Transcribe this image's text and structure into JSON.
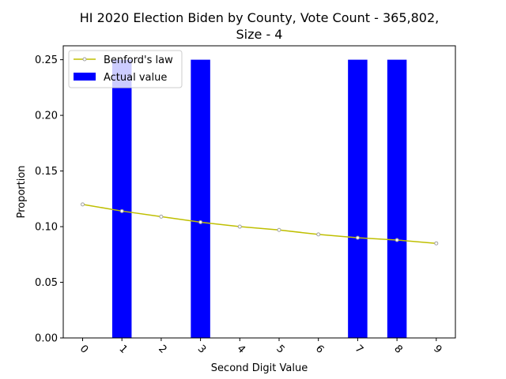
{
  "chart_data": {
    "type": "bar",
    "title_line1": "HI 2020 Election Biden by County,  Vote Count - 365,802,",
    "title_line2": "Size - 4",
    "xlabel": "Second Digit Value",
    "ylabel": "Proportion",
    "categories": [
      "0",
      "1",
      "2",
      "3",
      "4",
      "5",
      "6",
      "7",
      "8",
      "9"
    ],
    "ylim": [
      0,
      0.25
    ],
    "yticks": [
      "0.00",
      "0.05",
      "0.10",
      "0.15",
      "0.20",
      "0.25"
    ],
    "grid": false,
    "legend_position": "top-left",
    "series": [
      {
        "name": "Benford's law",
        "kind": "line",
        "color": "#bfbf00",
        "marker_color": "#a0a0a0",
        "values": [
          0.12,
          0.114,
          0.109,
          0.104,
          0.1,
          0.097,
          0.093,
          0.09,
          0.088,
          0.085
        ]
      },
      {
        "name": "Actual value",
        "kind": "bar",
        "color": "#0000ff",
        "values": [
          0,
          0.25,
          0,
          0.25,
          0,
          0,
          0,
          0.25,
          0.25,
          0
        ]
      }
    ]
  }
}
